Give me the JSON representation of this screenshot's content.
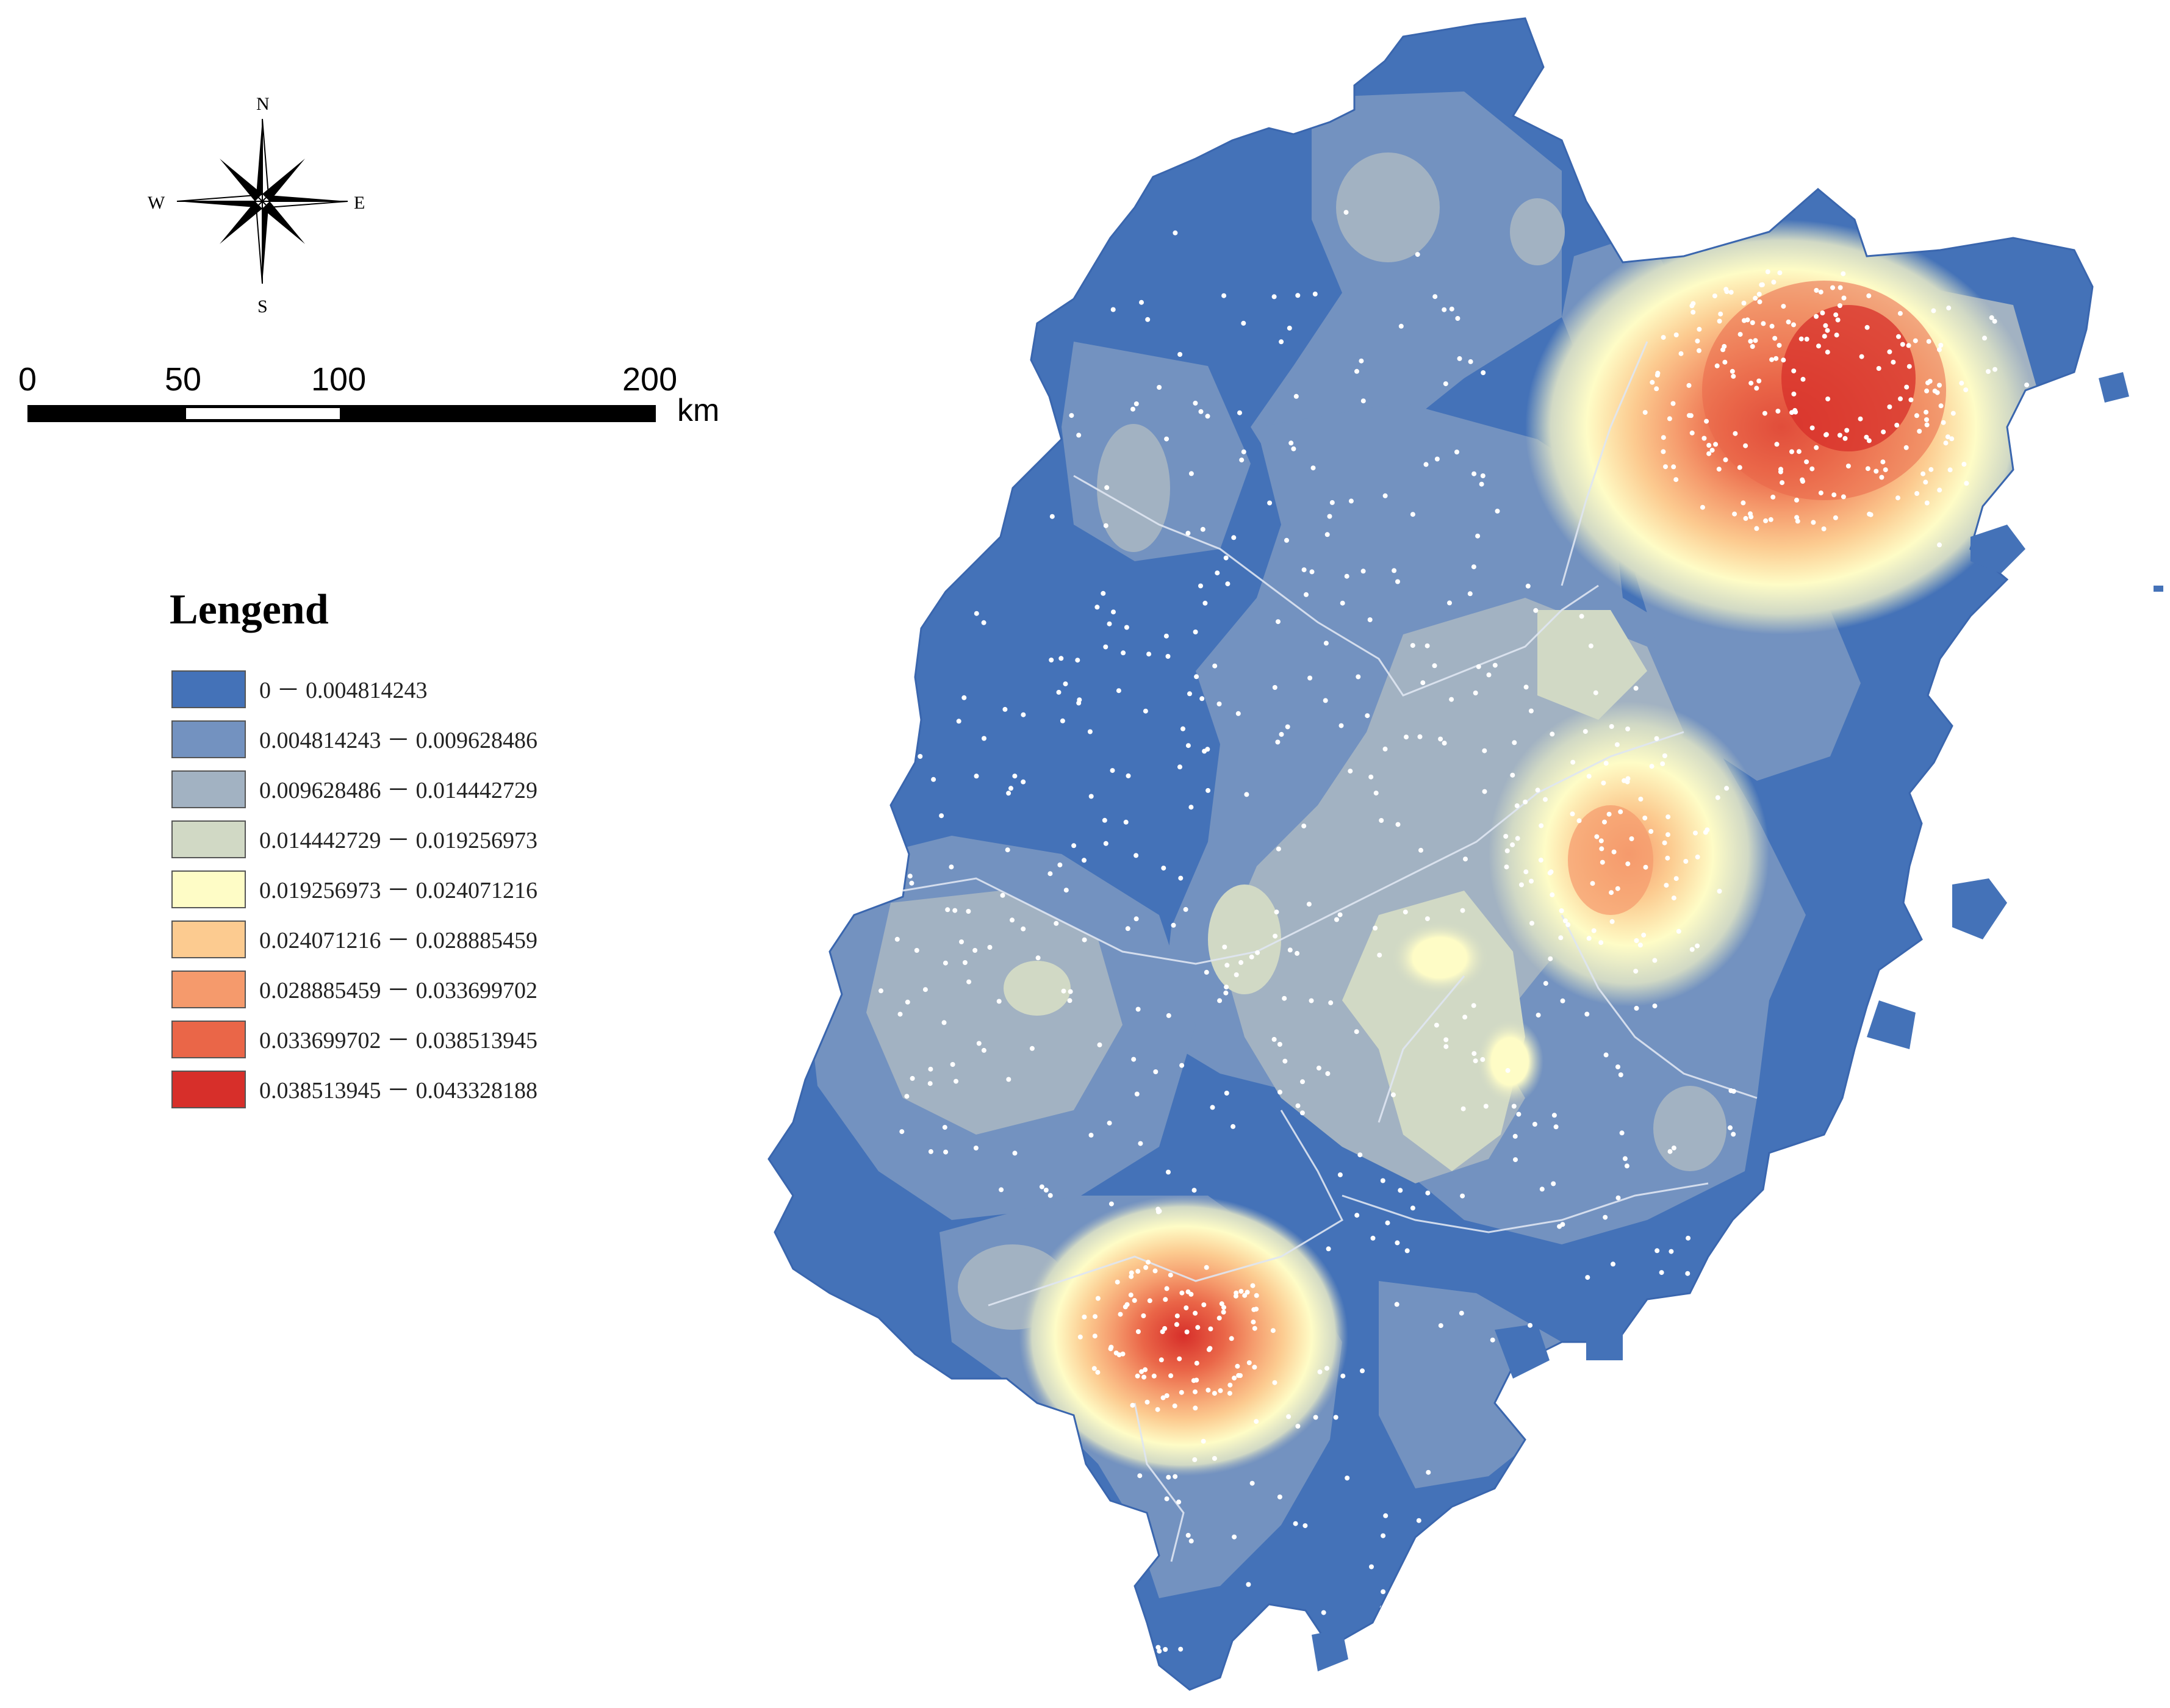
{
  "compass": {
    "north": "N",
    "south": "S",
    "east": "E",
    "west": "W",
    "icon": "compass-rose-icon"
  },
  "scale_bar": {
    "ticks": [
      "0",
      "50",
      "100",
      "200"
    ],
    "unit": "km"
  },
  "legend": {
    "title": "Lengend",
    "classes": [
      {
        "label": "0 － 0.004814243",
        "color": "#4472b8"
      },
      {
        "label": "0.004814243 － 0.009628486",
        "color": "#7392c0"
      },
      {
        "label": "0.009628486 － 0.014442729",
        "color": "#a2b2c2"
      },
      {
        "label": "0.014442729 － 0.019256973",
        "color": "#d1d9c5"
      },
      {
        "label": "0.019256973 － 0.024071216",
        "color": "#fefcc6"
      },
      {
        "label": "0.024071216 － 0.028885459",
        "color": "#fccb90"
      },
      {
        "label": "0.028885459 － 0.033699702",
        "color": "#f59a6c"
      },
      {
        "label": "0.033699702 － 0.038513945",
        "color": "#ea6648"
      },
      {
        "label": "0.038513945 － 0.043328188",
        "color": "#d72f2a"
      }
    ]
  },
  "map": {
    "type": "kernel-density-heatmap",
    "background_color": "#ffffff",
    "point_color": "#ffffff",
    "boundary_color": "#dfe6f2"
  }
}
